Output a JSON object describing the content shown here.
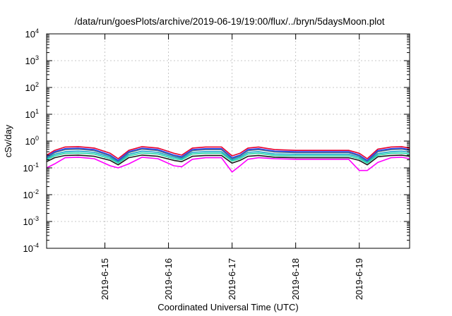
{
  "chart_data": {
    "type": "line",
    "title": "/data/run/goesPlots/archive/2019-06-19/19:00/flux/../bryn/5daysMoon.plot",
    "xlabel": "Coordinated Universal Time (UTC)",
    "ylabel": "cSv/day",
    "yscale": "log",
    "ylim": [
      0.0001,
      10000
    ],
    "xlim": [
      "2019-06-14 02:00",
      "2019-06-19 19:00"
    ],
    "grid": true,
    "y_ticks": [
      {
        "base": "10",
        "exp": "-4"
      },
      {
        "base": "10",
        "exp": "-3"
      },
      {
        "base": "10",
        "exp": "-2"
      },
      {
        "base": "10",
        "exp": "-1"
      },
      {
        "base": "10",
        "exp": "0"
      },
      {
        "base": "10",
        "exp": "1"
      },
      {
        "base": "10",
        "exp": "2"
      },
      {
        "base": "10",
        "exp": "3"
      },
      {
        "base": "10",
        "exp": "4"
      }
    ],
    "x_ticks": [
      "2019-6-15",
      "2019-6-16",
      "2019-6-17",
      "2019-6-18",
      "2019-6-19"
    ],
    "colors": [
      "#e8002b",
      "#1f3cff",
      "#4d6a8a",
      "#19a7c9",
      "#28d9a8",
      "#1a1a1a",
      "#ff00ff"
    ],
    "x": [
      "2019-06-14 02:00",
      "2019-06-14 05:00",
      "2019-06-14 09:00",
      "2019-06-14 14:00",
      "2019-06-14 20:00",
      "2019-06-15 02:00",
      "2019-06-15 05:00",
      "2019-06-15 09:00",
      "2019-06-15 14:00",
      "2019-06-15 20:00",
      "2019-06-16 02:00",
      "2019-06-16 05:00",
      "2019-06-16 09:00",
      "2019-06-16 14:00",
      "2019-06-16 20:00",
      "2019-06-17 00:00",
      "2019-06-17 03:00",
      "2019-06-17 06:00",
      "2019-06-17 10:00",
      "2019-06-17 16:00",
      "2019-06-18 00:00",
      "2019-06-18 12:00",
      "2019-06-18 20:00",
      "2019-06-19 00:00",
      "2019-06-19 03:00",
      "2019-06-19 07:00",
      "2019-06-19 12:00",
      "2019-06-19 16:00",
      "2019-06-19 19:00"
    ],
    "series": [
      {
        "values": [
          0.3,
          0.45,
          0.6,
          0.62,
          0.55,
          0.35,
          0.22,
          0.45,
          0.62,
          0.55,
          0.35,
          0.3,
          0.55,
          0.6,
          0.6,
          0.28,
          0.35,
          0.55,
          0.6,
          0.48,
          0.45,
          0.45,
          0.45,
          0.35,
          0.22,
          0.5,
          0.6,
          0.62,
          0.55
        ]
      },
      {
        "values": [
          0.26,
          0.4,
          0.52,
          0.54,
          0.48,
          0.3,
          0.19,
          0.4,
          0.54,
          0.48,
          0.3,
          0.26,
          0.48,
          0.52,
          0.52,
          0.24,
          0.3,
          0.48,
          0.52,
          0.42,
          0.4,
          0.4,
          0.4,
          0.3,
          0.19,
          0.44,
          0.52,
          0.54,
          0.48
        ]
      },
      {
        "values": [
          0.24,
          0.37,
          0.48,
          0.5,
          0.44,
          0.28,
          0.17,
          0.37,
          0.5,
          0.44,
          0.28,
          0.24,
          0.44,
          0.48,
          0.48,
          0.22,
          0.28,
          0.44,
          0.48,
          0.39,
          0.37,
          0.37,
          0.37,
          0.28,
          0.17,
          0.4,
          0.48,
          0.5,
          0.44
        ]
      },
      {
        "values": [
          0.22,
          0.32,
          0.4,
          0.42,
          0.38,
          0.25,
          0.16,
          0.32,
          0.42,
          0.38,
          0.25,
          0.22,
          0.38,
          0.4,
          0.4,
          0.2,
          0.25,
          0.38,
          0.4,
          0.33,
          0.32,
          0.32,
          0.32,
          0.25,
          0.16,
          0.34,
          0.4,
          0.42,
          0.38
        ]
      },
      {
        "values": [
          0.2,
          0.28,
          0.35,
          0.36,
          0.33,
          0.22,
          0.15,
          0.28,
          0.36,
          0.33,
          0.22,
          0.2,
          0.33,
          0.35,
          0.35,
          0.18,
          0.22,
          0.33,
          0.35,
          0.29,
          0.28,
          0.28,
          0.28,
          0.22,
          0.15,
          0.3,
          0.35,
          0.36,
          0.33
        ]
      },
      {
        "values": [
          0.17,
          0.24,
          0.29,
          0.3,
          0.27,
          0.19,
          0.13,
          0.24,
          0.3,
          0.27,
          0.19,
          0.17,
          0.27,
          0.29,
          0.29,
          0.15,
          0.19,
          0.27,
          0.29,
          0.25,
          0.24,
          0.24,
          0.24,
          0.19,
          0.13,
          0.26,
          0.29,
          0.3,
          0.27
        ]
      },
      {
        "values": [
          0.1,
          0.14,
          0.24,
          0.25,
          0.22,
          0.12,
          0.1,
          0.14,
          0.25,
          0.22,
          0.12,
          0.11,
          0.21,
          0.24,
          0.24,
          0.07,
          0.12,
          0.21,
          0.24,
          0.22,
          0.21,
          0.21,
          0.21,
          0.08,
          0.08,
          0.16,
          0.24,
          0.25,
          0.22
        ]
      }
    ]
  }
}
